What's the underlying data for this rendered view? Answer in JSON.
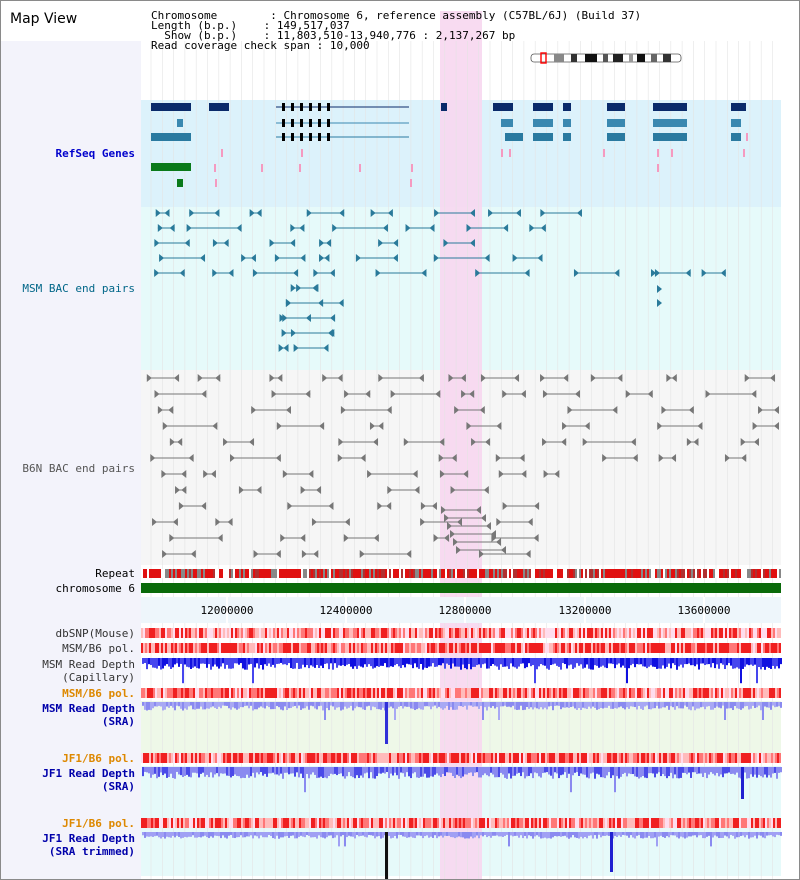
{
  "title": "Map View",
  "info": [
    {
      "key": "Chromosome       ",
      "value": "Chromosome 6, reference assembly (C57BL/6J) (Build 37)"
    },
    {
      "key": "Length (b.p.)   ",
      "value": "149,517,037"
    },
    {
      "key": "  Show (b.p.)   ",
      "value": "11,803,510-13,940,776 : 2,137,267 bp"
    },
    {
      "key": "Read coverage check span",
      "value": "10,000"
    }
  ],
  "tracks": {
    "refseq": "RefSeq Genes",
    "msm_bac": "MSM BAC end pairs",
    "b6n_bac": "B6N BAC end pairs",
    "repeat": "Repeat",
    "chromosome": "chromosome 6",
    "dbsnp": "dbSNP(Mouse)",
    "msm_b6_pol_1": "MSM/B6 pol.",
    "msm_depth_cap_1": "MSM Read Depth",
    "msm_depth_cap_2": "(Capillary)",
    "msm_b6_pol_2": "MSM/B6 pol.",
    "msm_depth_sra_1": "MSM Read Depth",
    "msm_depth_sra_2": "(SRA)",
    "jf1_b6_pol_1": "JF1/B6 pol.",
    "jf1_depth_sra_1": "JF1 Read Depth",
    "jf1_depth_sra_2": "(SRA)",
    "jf1_b6_pol_2": "JF1/B6 pol.",
    "jf1_depth_trim_1": "JF1 Read Depth",
    "jf1_depth_trim_2": "(SRA trimmed)"
  },
  "axis": {
    "ticks": [
      "12000000",
      "12400000",
      "12800000",
      "13200000",
      "13600000"
    ]
  },
  "colors": {
    "refseq_label": "#0000cc",
    "msm_label": "#006688",
    "b6n_label": "#555555",
    "pol_label_orange": "#dd8800",
    "depth_label_blue": "#0000aa",
    "highlight": "#f7d7f0"
  }
}
